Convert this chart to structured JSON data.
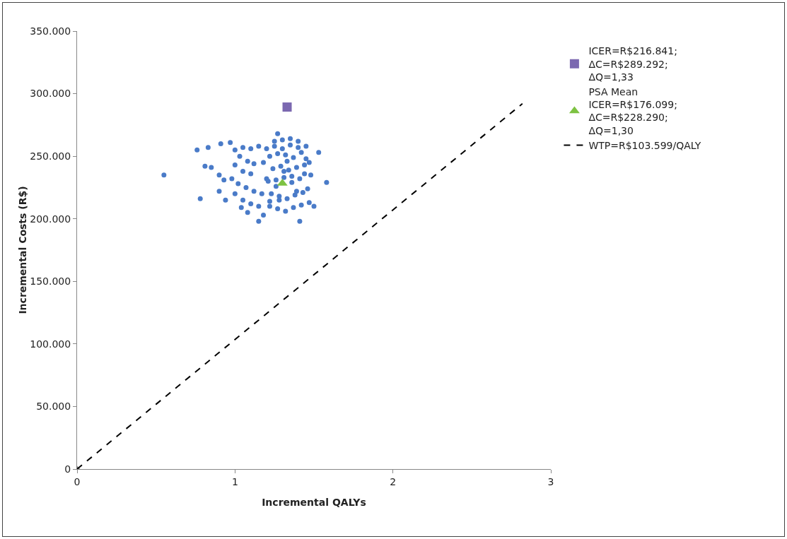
{
  "chart_data": {
    "type": "scatter",
    "xlabel": "Incremental QALYs",
    "ylabel": "Incremental Costs (R$)",
    "xlim": [
      0,
      3
    ],
    "xticks": [
      0,
      1,
      2,
      3
    ],
    "ylim": [
      0,
      350000
    ],
    "yticks": [
      0,
      {
        "value": 50000,
        "label": "50.000"
      },
      {
        "value": 100000,
        "label": "100.000"
      },
      {
        "value": 150000,
        "label": "150.000"
      },
      {
        "value": 200000,
        "label": "200.000"
      },
      {
        "value": 250000,
        "label": "250.000"
      },
      {
        "value": 300000,
        "label": "300.000"
      },
      {
        "value": 350000,
        "label": "350.000"
      }
    ],
    "legend": "right",
    "series": [
      {
        "marker": "circle",
        "color": "#4a7bc8",
        "x": [
          0.55,
          0.76,
          0.83,
          0.91,
          0.97,
          0.81,
          0.85,
          0.9,
          0.93,
          0.78,
          0.9,
          0.94,
          1.04,
          1.15,
          1.41,
          1.27,
          1.58,
          1.53,
          1.5,
          1.0,
          1.05,
          1.1,
          1.15,
          1.03,
          1.08,
          1.12,
          1.0,
          1.05,
          1.1,
          0.98,
          1.02,
          1.07,
          1.12,
          1.0,
          1.05,
          1.1,
          1.15,
          1.08,
          1.18,
          1.2,
          1.18,
          1.2,
          1.17,
          1.22,
          1.25,
          1.3,
          1.35,
          1.4,
          1.45,
          1.22,
          1.27,
          1.32,
          1.37,
          1.42,
          1.47,
          1.23,
          1.28,
          1.33,
          1.38,
          1.43,
          1.46,
          1.21,
          1.26,
          1.31,
          1.36,
          1.41,
          1.48,
          1.24,
          1.29,
          1.34,
          1.39,
          1.44,
          1.47,
          1.22,
          1.27,
          1.32,
          1.37,
          1.42,
          1.45,
          1.25,
          1.3,
          1.35,
          1.4,
          1.44,
          1.26,
          1.31,
          1.36,
          1.39,
          1.33,
          1.28
        ],
        "values": [
          235000,
          255000,
          257000,
          260000,
          261000,
          242000,
          241000,
          235000,
          231000,
          216000,
          222000,
          215000,
          209000,
          198000,
          198000,
          268000,
          229000,
          253000,
          210000,
          255000,
          257000,
          256000,
          258000,
          250000,
          246000,
          244000,
          243000,
          238000,
          236000,
          232000,
          228000,
          225000,
          222000,
          220000,
          215000,
          212000,
          210000,
          205000,
          203000,
          256000,
          245000,
          232000,
          220000,
          214000,
          262000,
          263000,
          264000,
          262000,
          258000,
          210000,
          208000,
          206000,
          209000,
          211000,
          213000,
          220000,
          218000,
          216000,
          219000,
          221000,
          224000,
          230000,
          231000,
          233000,
          229000,
          232000,
          235000,
          240000,
          242000,
          239000,
          241000,
          243000,
          245000,
          250000,
          252000,
          251000,
          249000,
          253000,
          248000,
          258000,
          256000,
          259000,
          257000,
          236000,
          226000,
          238000,
          234000,
          222000,
          246000,
          215000
        ]
      },
      {
        "marker": "diamond",
        "color": "#808080",
        "x": [
          0
        ],
        "values": [
          0
        ]
      },
      {
        "marker": "square",
        "color": "#7b68b0",
        "name": "ICER=R$216.841;\nΔC=R$289.292;\nΔQ=1,33",
        "x": [
          1.33
        ],
        "values": [
          289292
        ]
      },
      {
        "marker": "triangle",
        "color": "#7dc242",
        "name": "PSA Mean\nICER=R$176.099;\nΔC=R$228.290;\nΔQ=1,30",
        "x": [
          1.3
        ],
        "values": [
          228290
        ]
      },
      {
        "type": "line",
        "marker": "none",
        "line_style": "dashed",
        "color": "#000000",
        "name": "WTP=R$103.599/QALY",
        "x": [
          0,
          2.82
        ],
        "values": [
          0,
          292000
        ]
      }
    ]
  }
}
